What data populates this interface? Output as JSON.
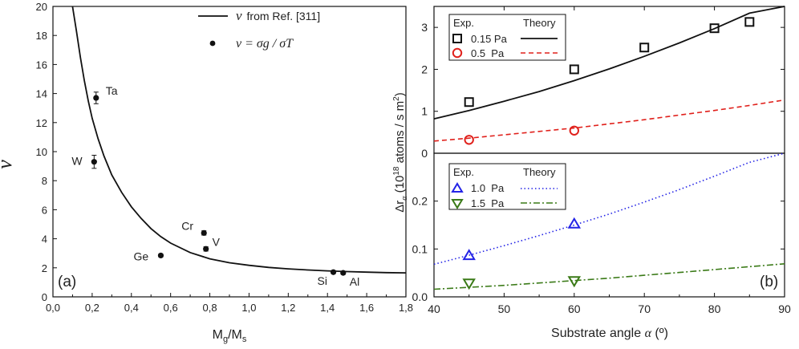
{
  "colors": {
    "black": "#111111",
    "red": "#e0201b",
    "blue": "#2323e6",
    "green": "#3a7a17"
  },
  "chart_data": [
    {
      "type": "scatter",
      "panel": "(a)",
      "xlabel_main": "M",
      "xlabel_sub1": "g",
      "xlabel_mid": "/M",
      "xlabel_sub2": "s",
      "ylabel": "ν",
      "xlim": [
        0.0,
        1.8
      ],
      "ylim": [
        0,
        20
      ],
      "xticks": [
        "0,0",
        "0,2",
        "0,4",
        "0,6",
        "0,8",
        "1,0",
        "1,2",
        "1,4",
        "1,6",
        "1,8"
      ],
      "yticks": [
        "0",
        "2",
        "4",
        "6",
        "8",
        "10",
        "12",
        "14",
        "16",
        "18",
        "20"
      ],
      "legend_position": "top-right",
      "legend_line_label_sym": "ν",
      "legend_line_label_rest": "from Ref. [311]",
      "legend_point_label": "ν = σg / σT",
      "curve_x": [
        0.1,
        0.12,
        0.14,
        0.16,
        0.18,
        0.2,
        0.23,
        0.26,
        0.3,
        0.35,
        0.4,
        0.45,
        0.5,
        0.55,
        0.6,
        0.7,
        0.8,
        0.9,
        1.0,
        1.1,
        1.2,
        1.3,
        1.4,
        1.5,
        1.6,
        1.7,
        1.8
      ],
      "curve_y": [
        20.0,
        18.3,
        16.5,
        14.9,
        13.5,
        12.3,
        10.9,
        9.7,
        8.4,
        7.2,
        6.2,
        5.4,
        4.7,
        4.15,
        3.7,
        3.05,
        2.62,
        2.35,
        2.17,
        2.03,
        1.93,
        1.85,
        1.79,
        1.74,
        1.7,
        1.67,
        1.65
      ],
      "points": [
        {
          "label": "Ta",
          "x": 0.22,
          "y": 13.7,
          "err": 0.4
        },
        {
          "label": "W",
          "x": 0.21,
          "y": 9.3,
          "err": 0.45
        },
        {
          "label": "Ge",
          "x": 0.55,
          "y": 2.85,
          "err": 0.1
        },
        {
          "label": "Cr",
          "x": 0.77,
          "y": 4.4,
          "err": 0.15
        },
        {
          "label": "V",
          "x": 0.78,
          "y": 3.3,
          "err": 0.15
        },
        {
          "label": "Si",
          "x": 1.43,
          "y": 1.7,
          "err": 0.1
        },
        {
          "label": "Al",
          "x": 1.48,
          "y": 1.65,
          "err": 0.1
        }
      ]
    },
    {
      "type": "scatter",
      "panel": "(b)",
      "xlabel": "Substrate angle α (º)",
      "ylabel": "Δr_α (10^18 atoms / s m^2)",
      "ylabel_text": "Δrα (1018 atoms / s m2)",
      "xlim": [
        40,
        90
      ],
      "xticks": [
        "40",
        "50",
        "60",
        "70",
        "80",
        "90"
      ],
      "top": {
        "ylim": [
          0,
          3.5
        ],
        "yticks": [
          "0",
          "1",
          "2",
          "3"
        ],
        "legend_position": "top-left",
        "legend_exp": "Exp.",
        "legend_theory": "Theory",
        "series": [
          {
            "name": "0.15 Pa",
            "marker": "square",
            "color": "#111111",
            "exp_x": [
              45,
              60,
              70,
              80,
              85
            ],
            "exp_y": [
              1.22,
              2.0,
              2.52,
              2.98,
              3.13
            ],
            "theory_style": "solid",
            "theory_x": [
              40,
              45,
              50,
              55,
              60,
              65,
              70,
              75,
              80,
              85,
              90
            ],
            "theory_y": [
              0.82,
              1.02,
              1.24,
              1.47,
              1.73,
              2.01,
              2.31,
              2.63,
              2.97,
              3.34,
              3.52
            ]
          },
          {
            "name": "0.5  Pa",
            "marker": "circle",
            "color": "#e0201b",
            "exp_x": [
              45,
              60
            ],
            "exp_y": [
              0.32,
              0.54
            ],
            "theory_style": "dashed",
            "theory_x": [
              40,
              45,
              50,
              55,
              60,
              65,
              70,
              75,
              80,
              85,
              90
            ],
            "theory_y": [
              0.29,
              0.36,
              0.44,
              0.52,
              0.6,
              0.7,
              0.8,
              0.91,
              1.02,
              1.14,
              1.27
            ]
          }
        ]
      },
      "bottom": {
        "ylim": [
          0,
          0.3
        ],
        "yticks": [
          "0.0",
          "0.1",
          "0.2"
        ],
        "legend_position": "top-left",
        "legend_exp": "Exp.",
        "legend_theory": "Theory",
        "panel_label": "(b)",
        "series": [
          {
            "name": "1.0  Pa",
            "marker": "triangle-up",
            "color": "#2323e6",
            "exp_x": [
              45,
              60
            ],
            "exp_y": [
              0.087,
              0.153
            ],
            "theory_style": "dotted",
            "theory_x": [
              40,
              45,
              50,
              55,
              60,
              65,
              70,
              75,
              80,
              85,
              90
            ],
            "theory_y": [
              0.068,
              0.087,
              0.107,
              0.128,
              0.15,
              0.173,
              0.198,
              0.224,
              0.252,
              0.281,
              0.3
            ]
          },
          {
            "name": "1.5  Pa",
            "marker": "triangle-down",
            "color": "#3a7a17",
            "exp_x": [
              45,
              60
            ],
            "exp_y": [
              0.028,
              0.033
            ],
            "theory_style": "dashdot",
            "theory_x": [
              40,
              45,
              50,
              55,
              60,
              65,
              70,
              75,
              80,
              85,
              90
            ],
            "theory_y": [
              0.016,
              0.02,
              0.024,
              0.029,
              0.034,
              0.039,
              0.045,
              0.051,
              0.057,
              0.063,
              0.069
            ]
          }
        ]
      }
    }
  ]
}
